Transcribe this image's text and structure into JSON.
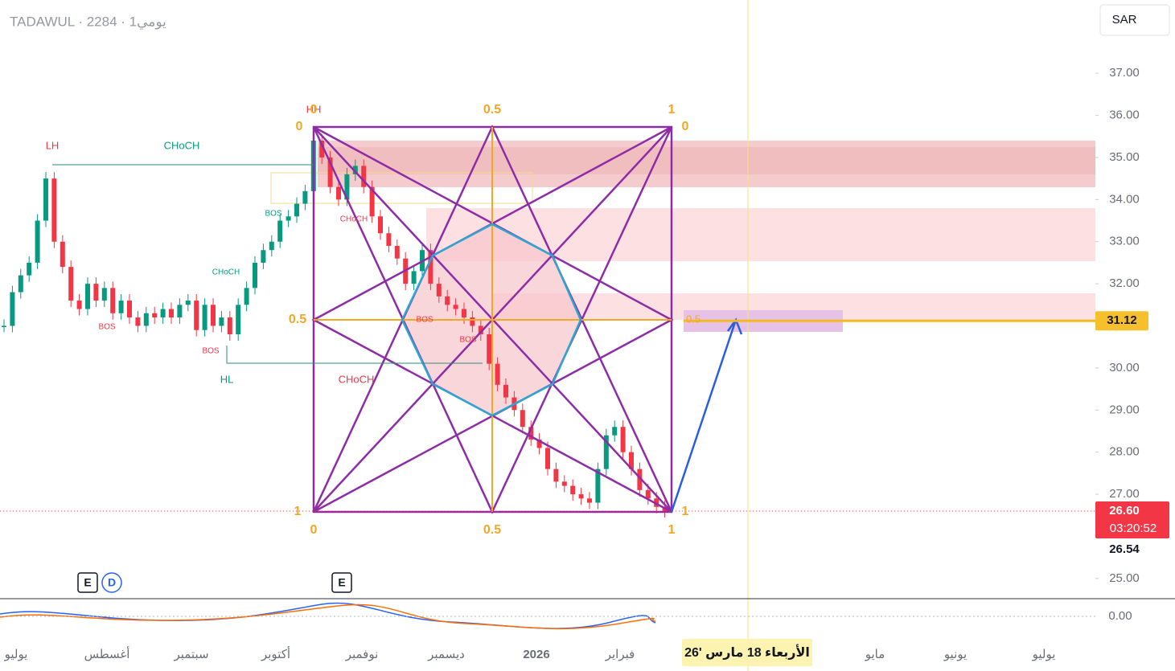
{
  "header": {
    "title": "TADAWUL · 2284 · 1يومي",
    "currency": "SAR"
  },
  "chart_data": {
    "type": "candlestick",
    "closes": [
      31.0,
      31.8,
      32.2,
      32.5,
      33.5,
      34.5,
      33.0,
      32.4,
      31.6,
      31.4,
      32.0,
      31.6,
      31.9,
      31.3,
      31.6,
      31.2,
      31.0,
      31.3,
      31.2,
      31.4,
      31.2,
      31.5,
      31.6,
      30.9,
      31.5,
      31.0,
      31.2,
      30.8,
      31.5,
      31.9,
      32.5,
      32.8,
      33.0,
      33.5,
      33.6,
      33.9,
      34.2,
      35.4,
      35.0,
      34.3,
      34.0,
      34.6,
      34.8,
      34.3,
      33.6,
      33.2,
      32.9,
      32.6,
      32.0,
      32.3,
      32.8,
      32.0,
      31.7,
      31.5,
      31.4,
      31.2,
      31.0,
      30.8,
      30.1,
      29.6,
      29.3,
      29.0,
      28.6,
      28.3,
      28.1,
      27.6,
      27.3,
      27.2,
      27.0,
      26.9,
      26.8,
      27.6,
      28.4,
      28.6,
      28.0,
      27.6,
      27.1,
      26.9,
      26.7,
      26.6
    ],
    "ylim": [
      24.52,
      38.74
    ],
    "yticks": [
      {
        "value": 25,
        "label": "25.00"
      },
      {
        "value": 27,
        "label": "27.00"
      },
      {
        "value": 28,
        "label": "28.00"
      },
      {
        "value": 29,
        "label": "29.00"
      },
      {
        "value": 30,
        "label": "30.00"
      },
      {
        "value": 32,
        "label": "32.00"
      },
      {
        "value": 33,
        "label": "33.00"
      },
      {
        "value": 34,
        "label": "34.00"
      },
      {
        "value": 35,
        "label": "35.00"
      },
      {
        "value": 36,
        "label": "36.00"
      },
      {
        "value": 37,
        "label": "37.00"
      }
    ],
    "categories": [
      "يوليو",
      "أغسطس",
      "سبتمبر",
      "أكتوبر",
      "نوفمبر",
      "ديسمبر",
      "2026",
      "فبراير",
      "مايو",
      "يونيو",
      "يوليو"
    ],
    "last_price": {
      "value": 26.6,
      "label": "26.60"
    },
    "countdown": "03:20:52",
    "low_label": "26.54",
    "level": {
      "value": 31.12,
      "label": "31.12"
    },
    "crosshair_date": "الأربعاء 18 مارس '26",
    "macd_zero": {
      "value": 0,
      "label": "0.00"
    }
  },
  "annotations": [
    "LH",
    "CHoCH",
    "HH",
    "BOS",
    "CHoCH",
    "BOS",
    "BOS",
    "HL",
    "CHoCH",
    "CHoCH",
    "BOS",
    "BOS",
    "0.5"
  ],
  "fib_labels": [
    "0",
    "0.5",
    "1"
  ],
  "events": [
    "E",
    "D",
    "E"
  ]
}
